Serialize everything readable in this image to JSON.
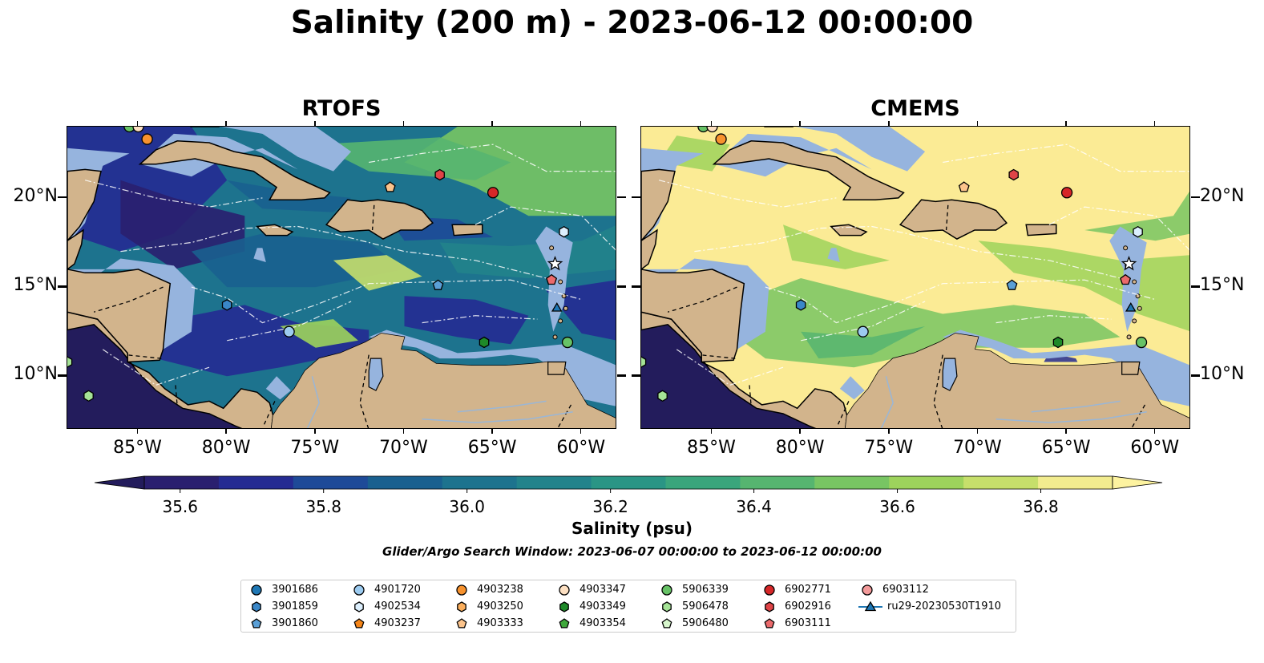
{
  "title": "Salinity (200 m) - 2023-06-12 00:00:00",
  "panels": [
    {
      "title": "RTOFS",
      "palette": "rtofs"
    },
    {
      "title": "CMEMS",
      "palette": "cmems"
    }
  ],
  "axes": {
    "lon_ticks": [
      "85°W",
      "80°W",
      "75°W",
      "70°W",
      "65°W",
      "60°W"
    ],
    "lat_ticks": [
      "20°N",
      "15°N",
      "10°N"
    ],
    "lon_range": [
      -89,
      -58
    ],
    "lat_range": [
      7,
      24
    ]
  },
  "colorbar": {
    "label": "Salinity (psu)",
    "tick_labels": [
      "35.6",
      "35.8",
      "36.0",
      "36.2",
      "36.4",
      "36.6",
      "36.8"
    ],
    "tick_values": [
      35.6,
      35.8,
      36.0,
      36.2,
      36.4,
      36.6,
      36.8
    ],
    "range": [
      35.55,
      36.9
    ],
    "colors": [
      "#2a1f6f",
      "#252b92",
      "#1e4a98",
      "#19608f",
      "#1d738e",
      "#22838b",
      "#2a9585",
      "#3aa57c",
      "#56b570",
      "#78c563",
      "#9dd35c",
      "#c6df6b",
      "#f2ec8f"
    ],
    "under_color": "#231c5c",
    "over_color": "#fdf3a0"
  },
  "search_window": "Glider/Argo Search Window: 2023-06-07 00:00:00 to 2023-06-12 00:00:00",
  "colors": {
    "land": "#d2b48c",
    "shelf": "#96b4de",
    "blue": "#1f77b4",
    "lightblue": "#8ec1e6",
    "orange": "#f58518",
    "peach": "#fdc89a",
    "green": "#2ca02c",
    "lightgreen": "#9be38e",
    "red": "#d62728",
    "pink": "#e87f80"
  },
  "legend": [
    {
      "label": "3901686",
      "marker": "circle",
      "color": "#1f77b4"
    },
    {
      "label": "3901859",
      "marker": "hexagon",
      "color": "#3a87c8"
    },
    {
      "label": "3901860",
      "marker": "pentagon",
      "color": "#5a9fd6"
    },
    {
      "label": "4901720",
      "marker": "circle",
      "color": "#9ccbf0"
    },
    {
      "label": "4902534",
      "marker": "hexagon",
      "color": "#dceffd"
    },
    {
      "label": "4903237",
      "marker": "pentagon",
      "color": "#f58518"
    },
    {
      "label": "4903238",
      "marker": "circle",
      "color": "#f7922e"
    },
    {
      "label": "4903250",
      "marker": "hexagon",
      "color": "#fbae5c"
    },
    {
      "label": "4903333",
      "marker": "pentagon",
      "color": "#fcc48c"
    },
    {
      "label": "4903347",
      "marker": "circle",
      "color": "#fde0c2"
    },
    {
      "label": "4903349",
      "marker": "hexagon",
      "color": "#1e8a29"
    },
    {
      "label": "4903354",
      "marker": "pentagon",
      "color": "#3fa83b"
    },
    {
      "label": "5906339",
      "marker": "circle",
      "color": "#67c266"
    },
    {
      "label": "5906478",
      "marker": "hexagon",
      "color": "#a5e396"
    },
    {
      "label": "5906480",
      "marker": "pentagon",
      "color": "#d7f6cc"
    },
    {
      "label": "6902771",
      "marker": "circle",
      "color": "#d62728"
    },
    {
      "label": "6902916",
      "marker": "hexagon",
      "color": "#e04447"
    },
    {
      "label": "6903111",
      "marker": "pentagon",
      "color": "#eb6a6c"
    },
    {
      "label": "6903112",
      "marker": "circle",
      "color": "#f39a9a"
    },
    {
      "label": "ru29-20230530T1910",
      "marker": "triangle",
      "color": "#1f77b4"
    }
  ],
  "observations": [
    {
      "lon": -85.5,
      "lat": 24.0,
      "marker": "circle",
      "color": "#67c266"
    },
    {
      "lon": -85.0,
      "lat": 24.0,
      "marker": "circle",
      "color": "#fde0c2"
    },
    {
      "lon": -84.5,
      "lat": 23.3,
      "marker": "circle",
      "color": "#f7922e"
    },
    {
      "lon": -68.0,
      "lat": 21.3,
      "marker": "hexagon",
      "color": "#e04447"
    },
    {
      "lon": -70.8,
      "lat": 20.6,
      "marker": "pentagon",
      "color": "#fcc48c"
    },
    {
      "lon": -65.0,
      "lat": 20.3,
      "marker": "circle",
      "color": "#d62728"
    },
    {
      "lon": -61.0,
      "lat": 18.1,
      "marker": "hexagon",
      "color": "#dceffd"
    },
    {
      "lon": -61.5,
      "lat": 16.3,
      "marker": "star",
      "color": "#ffffff"
    },
    {
      "lon": -61.7,
      "lat": 15.4,
      "marker": "pentagon",
      "color": "#eb6a6c"
    },
    {
      "lon": -68.1,
      "lat": 15.1,
      "marker": "pentagon",
      "color": "#5a9fd6"
    },
    {
      "lon": -80.0,
      "lat": 14.0,
      "marker": "hexagon",
      "color": "#3a87c8"
    },
    {
      "lon": -61.4,
      "lat": 13.8,
      "marker": "triangle",
      "color": "#1f77b4"
    },
    {
      "lon": -76.5,
      "lat": 12.5,
      "marker": "circle",
      "color": "#9ccbf0"
    },
    {
      "lon": -65.5,
      "lat": 11.9,
      "marker": "hexagon",
      "color": "#1e8a29"
    },
    {
      "lon": -60.8,
      "lat": 11.9,
      "marker": "circle",
      "color": "#67c266"
    },
    {
      "lon": -89.0,
      "lat": 10.8,
      "marker": "hexagon",
      "color": "#a5e396"
    },
    {
      "lon": -87.8,
      "lat": 8.9,
      "marker": "hexagon",
      "color": "#a5e396"
    }
  ]
}
